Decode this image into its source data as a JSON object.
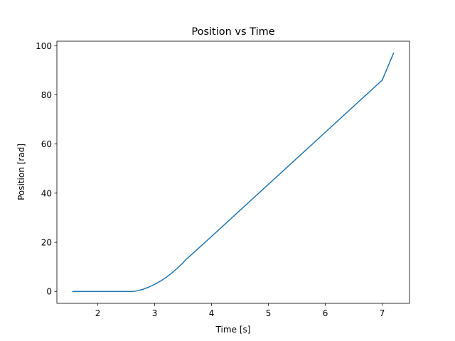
{
  "chart_data": {
    "type": "line",
    "title": "Position vs Time",
    "xlabel": "Time [s]",
    "ylabel": "Position [rad]",
    "xlim": [
      1.28,
      7.48
    ],
    "ylim": [
      -4.85,
      101.85
    ],
    "xticks": [
      2,
      3,
      4,
      5,
      6,
      7
    ],
    "yticks": [
      0,
      20,
      40,
      60,
      80,
      100
    ],
    "grid": false,
    "colors": {
      "series": "#1f77b4"
    },
    "series": [
      {
        "x": [
          1.56,
          1.8,
          2.0,
          2.2,
          2.4,
          2.6,
          2.65,
          2.7,
          2.8,
          2.9,
          3.0,
          3.1,
          3.2,
          3.3,
          3.4,
          3.5,
          3.55,
          3.6,
          4.0,
          4.5,
          5.0,
          5.5,
          6.0,
          6.5,
          7.0,
          7.2
        ],
        "y": [
          0,
          0,
          0,
          0,
          0,
          0,
          0.05,
          0.3,
          0.9,
          1.8,
          2.9,
          4.2,
          5.7,
          7.5,
          9.5,
          11.7,
          13.0,
          14.0,
          22.4,
          33.0,
          43.6,
          54.2,
          64.8,
          75.4,
          86.0,
          97.0
        ]
      }
    ]
  }
}
